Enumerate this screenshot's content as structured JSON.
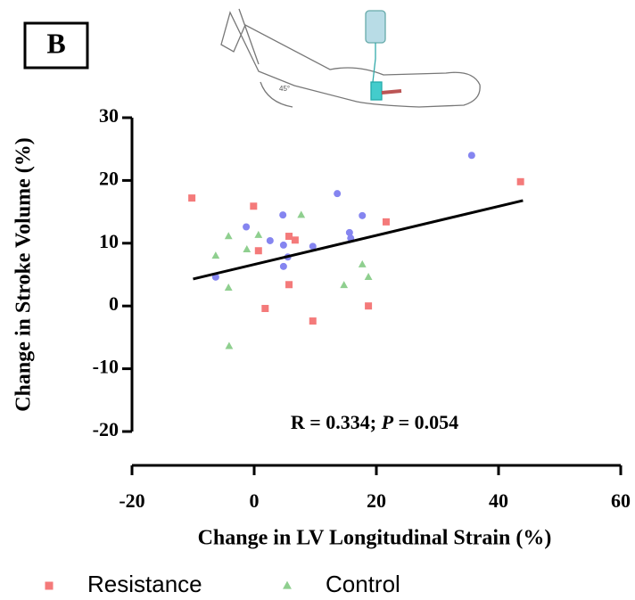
{
  "chart_data": {
    "type": "scatter",
    "panel_label": "B",
    "xlabel": "Change in LV Longitudinal Strain (%)",
    "ylabel": "Change in  Stroke Volume (%)",
    "annotation": [
      "R = 0.334; ",
      "P",
      " = 0.054"
    ],
    "xlim": [
      -20,
      60
    ],
    "xticks": [
      -20,
      0,
      20,
      40,
      60
    ],
    "ylim": [
      -20,
      30
    ],
    "yticks": [
      -20,
      -10,
      0,
      10,
      20,
      30
    ],
    "trendline": {
      "color": "#000000",
      "x": [
        -10,
        44
      ],
      "y": [
        4.3,
        16.8
      ]
    },
    "series": [
      {
        "name": "Resistance",
        "color": "#f47a7a",
        "marker": "square",
        "x": [
          -10.2,
          -0.1,
          0.7,
          5.7,
          6.7,
          5.7,
          1.8,
          9.6,
          18.7,
          21.6,
          43.6
        ],
        "values": [
          17.2,
          15.9,
          8.8,
          11.1,
          10.5,
          3.4,
          -0.4,
          -2.4,
          0.0,
          13.4,
          19.8
        ]
      },
      {
        "name": "Control",
        "color": "#8fcf8f",
        "marker": "triangle",
        "x": [
          -6.3,
          -4.2,
          0.7,
          -1.2,
          -4.2,
          7.7,
          -4.1,
          17.7,
          18.7,
          14.7
        ],
        "values": [
          8.0,
          11.1,
          11.3,
          9.0,
          2.9,
          14.5,
          -6.4,
          6.6,
          4.6,
          3.3
        ]
      },
      {
        "color": "#8585f0",
        "marker": "circle",
        "x": [
          -1.3,
          -6.3,
          2.6,
          4.7,
          4.8,
          4.8,
          5.5,
          9.6,
          13.6,
          15.6,
          15.8,
          17.7,
          35.6
        ],
        "values": [
          12.6,
          4.6,
          10.4,
          14.5,
          9.7,
          6.3,
          7.8,
          9.5,
          17.9,
          11.7,
          10.8,
          14.4,
          24.0
        ]
      }
    ]
  }
}
